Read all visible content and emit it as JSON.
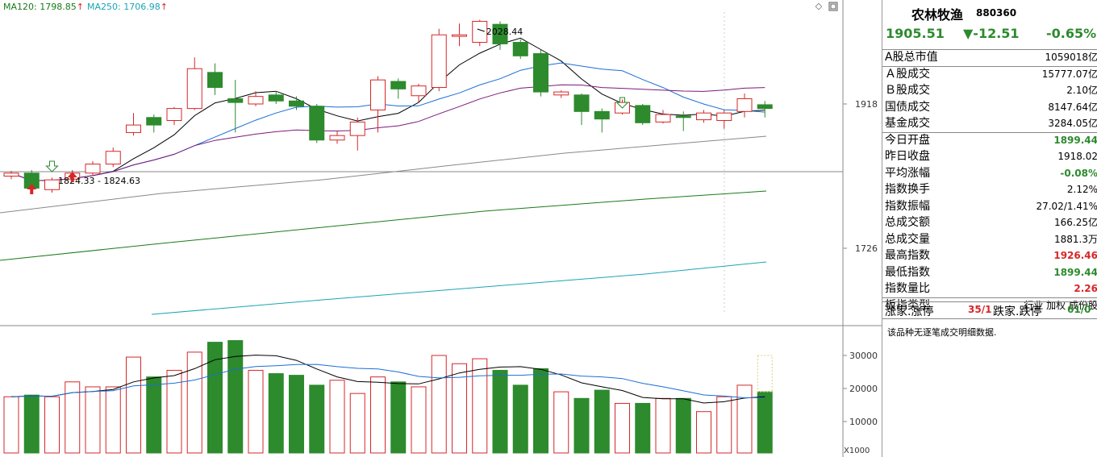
{
  "ma_labels": {
    "ma120": "MA120: 1798.85",
    "ma250": "MA250: 1706.98",
    "ma120_color": "#1a7a1a",
    "ma250_color": "#1aa5b5",
    "arrow_color": "#d62728"
  },
  "price_axis": {
    "upper": "1918",
    "lower": "1726"
  },
  "volume_axis": {
    "t30000": "30000",
    "t20000": "20000",
    "t10000": "10000",
    "unit": "X1000"
  },
  "annotations": {
    "high": "2028.44",
    "low": "1824.33 - 1824.63"
  },
  "chart_data": {
    "type": "candlestick",
    "price_ticks": [
      1918,
      1726
    ],
    "volume_ticks": [
      30000,
      20000,
      10000
    ],
    "candles": [
      {
        "o": 1822,
        "c": 1826,
        "h": 1829,
        "l": 1818,
        "v": 17500
      },
      {
        "o": 1826,
        "c": 1806,
        "h": 1830,
        "l": 1798,
        "v": 18000
      },
      {
        "o": 1804,
        "c": 1817,
        "h": 1820,
        "l": 1800,
        "v": 17500
      },
      {
        "o": 1818,
        "c": 1826,
        "h": 1830,
        "l": 1815,
        "v": 22000
      },
      {
        "o": 1826,
        "c": 1838,
        "h": 1842,
        "l": 1822,
        "v": 20500
      },
      {
        "o": 1838,
        "c": 1855,
        "h": 1860,
        "l": 1834,
        "v": 20500
      },
      {
        "o": 1880,
        "c": 1890,
        "h": 1906,
        "l": 1876,
        "v": 29500
      },
      {
        "o": 1900,
        "c": 1890,
        "h": 1904,
        "l": 1880,
        "v": 23500
      },
      {
        "o": 1896,
        "c": 1912,
        "h": 1914,
        "l": 1890,
        "v": 25500
      },
      {
        "o": 1912,
        "c": 1965,
        "h": 1980,
        "l": 1910,
        "v": 31000
      },
      {
        "o": 1960,
        "c": 1940,
        "h": 1972,
        "l": 1930,
        "v": 34000
      },
      {
        "o": 1925,
        "c": 1920,
        "h": 1950,
        "l": 1880,
        "v": 34500
      },
      {
        "o": 1918,
        "c": 1928,
        "h": 1935,
        "l": 1915,
        "v": 25500
      },
      {
        "o": 1930,
        "c": 1922,
        "h": 1935,
        "l": 1918,
        "v": 24500
      },
      {
        "o": 1922,
        "c": 1915,
        "h": 1928,
        "l": 1910,
        "v": 24000
      },
      {
        "o": 1915,
        "c": 1870,
        "h": 1918,
        "l": 1866,
        "v": 21000
      },
      {
        "o": 1870,
        "c": 1876,
        "h": 1882,
        "l": 1865,
        "v": 22500
      },
      {
        "o": 1876,
        "c": 1894,
        "h": 1900,
        "l": 1856,
        "v": 18500
      },
      {
        "o": 1910,
        "c": 1950,
        "h": 1955,
        "l": 1880,
        "v": 23500
      },
      {
        "o": 1948,
        "c": 1938,
        "h": 1952,
        "l": 1925,
        "v": 22000
      },
      {
        "o": 1929,
        "c": 1942,
        "h": 1945,
        "l": 1920,
        "v": 20500
      },
      {
        "o": 1940,
        "c": 2010,
        "h": 2018,
        "l": 1935,
        "v": 30000
      },
      {
        "o": 2008,
        "c": 2010,
        "h": 2025,
        "l": 1995,
        "v": 27500
      },
      {
        "o": 2000,
        "c": 2028,
        "h": 2030,
        "l": 1995,
        "v": 29000
      },
      {
        "o": 2024,
        "c": 1998,
        "h": 2028,
        "l": 1990,
        "v": 25500
      },
      {
        "o": 2000,
        "c": 1982,
        "h": 2004,
        "l": 1978,
        "v": 21000
      },
      {
        "o": 1985,
        "c": 1934,
        "h": 1990,
        "l": 1928,
        "v": 26000
      },
      {
        "o": 1930,
        "c": 1934,
        "h": 1936,
        "l": 1926,
        "v": 19000
      },
      {
        "o": 1930,
        "c": 1908,
        "h": 1932,
        "l": 1890,
        "v": 17000
      },
      {
        "o": 1908,
        "c": 1898,
        "h": 1912,
        "l": 1880,
        "v": 19500
      },
      {
        "o": 1906,
        "c": 1920,
        "h": 1924,
        "l": 1904,
        "v": 15500
      },
      {
        "o": 1916,
        "c": 1893,
        "h": 1918,
        "l": 1890,
        "v": 15500
      },
      {
        "o": 1894,
        "c": 1904,
        "h": 1910,
        "l": 1892,
        "v": 17000
      },
      {
        "o": 1902,
        "c": 1900,
        "h": 1908,
        "l": 1882,
        "v": 17000
      },
      {
        "o": 1897,
        "c": 1906,
        "h": 1910,
        "l": 1893,
        "v": 13000
      },
      {
        "o": 1896,
        "c": 1906,
        "h": 1910,
        "l": 1885,
        "v": 17500
      },
      {
        "o": 1908,
        "c": 1925,
        "h": 1932,
        "l": 1900,
        "v": 21000
      },
      {
        "o": 1917,
        "c": 1912,
        "h": 1922,
        "l": 1900,
        "v": 19000
      }
    ]
  },
  "panel": {
    "title": "农林牧渔",
    "code": "880360",
    "price": "1905.51",
    "change": "▼-12.51",
    "change_pct": "-0.65%",
    "rows": [
      {
        "label": "A股总市值",
        "value": "1059018亿",
        "cls": "black",
        "sep": true
      },
      {
        "label": "Ａ股成交",
        "value": "15777.07亿",
        "cls": "black",
        "sep": true
      },
      {
        "label": "Ｂ股成交",
        "value": "2.10亿",
        "cls": "black",
        "sep": false
      },
      {
        "label": "国债成交",
        "value": "8147.64亿",
        "cls": "black",
        "sep": false
      },
      {
        "label": "基金成交",
        "value": "3284.05亿",
        "cls": "black",
        "sep": false
      },
      {
        "label": "今日开盘",
        "value": "1899.44",
        "cls": "green",
        "sep": true
      },
      {
        "label": "昨日收盘",
        "value": "1918.02",
        "cls": "black",
        "sep": false
      },
      {
        "label": "平均涨幅",
        "value": "-0.08%",
        "cls": "green",
        "sep": false
      },
      {
        "label": "指数换手",
        "value": "2.12%",
        "cls": "black",
        "sep": false
      },
      {
        "label": "指数振幅",
        "value": "27.02/1.41%",
        "cls": "black",
        "sep": false
      },
      {
        "label": "总成交额",
        "value": "166.25亿",
        "cls": "black",
        "sep": false
      },
      {
        "label": "总成交量",
        "value": "1881.3万",
        "cls": "black",
        "sep": false
      },
      {
        "label": "最高指数",
        "value": "1926.46",
        "cls": "red",
        "sep": false
      },
      {
        "label": "最低指数",
        "value": "1899.44",
        "cls": "green",
        "sep": false
      },
      {
        "label": "指数量比",
        "value": "2.26",
        "cls": "red",
        "sep": false
      },
      {
        "label": "板指类型",
        "value": "行业 加权 成份股",
        "cls": "black tag",
        "sep": true
      }
    ],
    "updown_label1": "涨家.涨停",
    "updown_value1": "35/1",
    "updown_label2": "跌家.跌停",
    "updown_value2": "61/0",
    "note": "该品种无逐笔成交明细数据."
  }
}
